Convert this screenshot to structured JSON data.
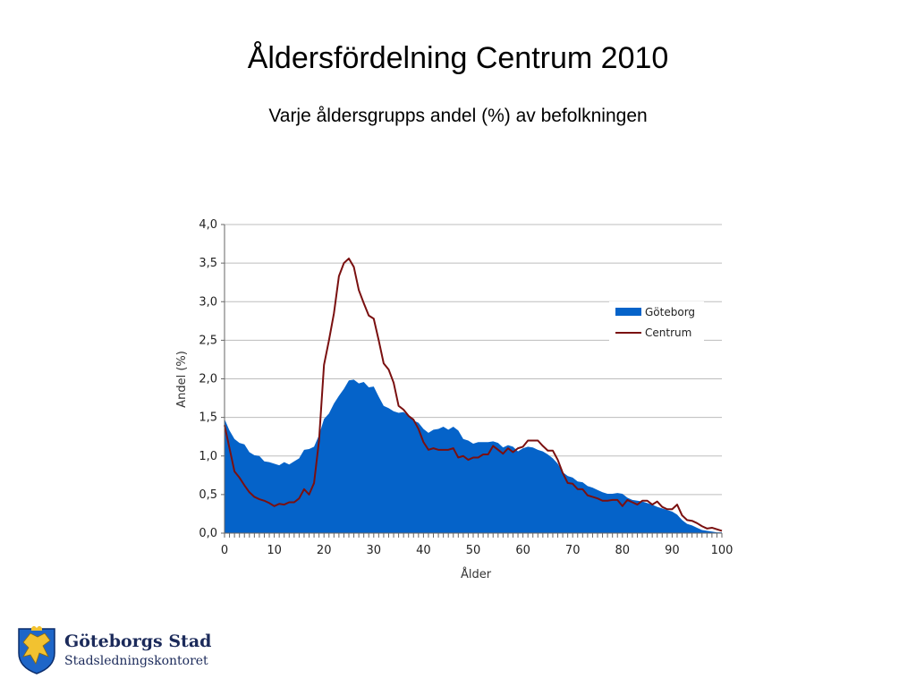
{
  "page": {
    "title": "Åldersfördelning Centrum 2010",
    "subtitle": "Varje åldersgrupps andel (%) av befolkningen"
  },
  "logo": {
    "name": "Göteborgs Stad",
    "department": "Stadsledningskontoret",
    "emblem": "lion-shield-emblem"
  },
  "chart_data": {
    "type": "area",
    "xlabel": "Ålder",
    "ylabel": "Andel (%)",
    "xlim": [
      0,
      100
    ],
    "ylim": [
      0,
      4
    ],
    "x_ticks": [
      "0",
      "10",
      "20",
      "30",
      "40",
      "50",
      "60",
      "70",
      "80",
      "90",
      "100"
    ],
    "y_ticks": [
      "0,0",
      "0,5",
      "1,0",
      "1,5",
      "2,0",
      "2,5",
      "3,0",
      "3,5",
      "4,0"
    ],
    "grid": "horizontal",
    "legend_position": "right",
    "x": [
      0,
      1,
      2,
      3,
      4,
      5,
      6,
      7,
      8,
      9,
      10,
      11,
      12,
      13,
      14,
      15,
      16,
      17,
      18,
      19,
      20,
      21,
      22,
      23,
      24,
      25,
      26,
      27,
      28,
      29,
      30,
      31,
      32,
      33,
      34,
      35,
      36,
      37,
      38,
      39,
      40,
      41,
      42,
      43,
      44,
      45,
      46,
      47,
      48,
      49,
      50,
      51,
      52,
      53,
      54,
      55,
      56,
      57,
      58,
      59,
      60,
      61,
      62,
      63,
      64,
      65,
      66,
      67,
      68,
      69,
      70,
      71,
      72,
      73,
      74,
      75,
      76,
      77,
      78,
      79,
      80,
      81,
      82,
      83,
      84,
      85,
      86,
      87,
      88,
      89,
      90,
      91,
      92,
      93,
      94,
      95,
      96,
      97,
      98,
      99,
      100
    ],
    "series": [
      {
        "name": "Göteborg",
        "type": "area",
        "color": "#0563c9",
        "values": [
          1.48,
          1.33,
          1.22,
          1.17,
          1.15,
          1.05,
          1.01,
          1.0,
          0.93,
          0.92,
          0.9,
          0.88,
          0.92,
          0.89,
          0.93,
          0.97,
          1.08,
          1.09,
          1.12,
          1.27,
          1.48,
          1.55,
          1.68,
          1.78,
          1.87,
          1.98,
          1.99,
          1.94,
          1.96,
          1.89,
          1.9,
          1.77,
          1.65,
          1.62,
          1.58,
          1.56,
          1.57,
          1.52,
          1.46,
          1.43,
          1.35,
          1.3,
          1.34,
          1.35,
          1.38,
          1.34,
          1.38,
          1.33,
          1.22,
          1.2,
          1.16,
          1.18,
          1.18,
          1.18,
          1.19,
          1.17,
          1.11,
          1.14,
          1.12,
          1.06,
          1.1,
          1.12,
          1.11,
          1.08,
          1.06,
          1.02,
          0.97,
          0.9,
          0.79,
          0.74,
          0.72,
          0.67,
          0.66,
          0.61,
          0.59,
          0.56,
          0.53,
          0.51,
          0.51,
          0.52,
          0.51,
          0.46,
          0.43,
          0.42,
          0.41,
          0.39,
          0.37,
          0.34,
          0.32,
          0.3,
          0.28,
          0.24,
          0.17,
          0.12,
          0.1,
          0.07,
          0.04,
          0.03,
          0.02,
          0.01,
          0.01
        ]
      },
      {
        "name": "Centrum",
        "type": "line",
        "color": "#7a1010",
        "values": [
          1.4,
          1.1,
          0.8,
          0.72,
          0.62,
          0.53,
          0.47,
          0.44,
          0.42,
          0.39,
          0.35,
          0.38,
          0.37,
          0.4,
          0.4,
          0.45,
          0.57,
          0.5,
          0.65,
          1.2,
          2.18,
          2.5,
          2.85,
          3.33,
          3.5,
          3.56,
          3.45,
          3.15,
          2.98,
          2.82,
          2.78,
          2.5,
          2.2,
          2.12,
          1.95,
          1.65,
          1.6,
          1.52,
          1.47,
          1.35,
          1.18,
          1.08,
          1.1,
          1.08,
          1.08,
          1.08,
          1.1,
          0.98,
          1.0,
          0.95,
          0.98,
          0.98,
          1.02,
          1.02,
          1.13,
          1.08,
          1.03,
          1.1,
          1.05,
          1.1,
          1.12,
          1.2,
          1.2,
          1.2,
          1.13,
          1.07,
          1.07,
          0.95,
          0.78,
          0.65,
          0.64,
          0.57,
          0.57,
          0.49,
          0.47,
          0.45,
          0.42,
          0.42,
          0.43,
          0.43,
          0.35,
          0.43,
          0.4,
          0.37,
          0.42,
          0.42,
          0.37,
          0.41,
          0.34,
          0.31,
          0.31,
          0.37,
          0.23,
          0.17,
          0.16,
          0.13,
          0.09,
          0.06,
          0.07,
          0.05,
          0.03
        ]
      }
    ]
  }
}
